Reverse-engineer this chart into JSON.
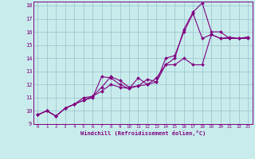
{
  "xlabel": "Windchill (Refroidissement éolien,°C)",
  "bg_color": "#c8ecec",
  "line_color": "#800080",
  "grid_color": "#a0c8d0",
  "axis_color": "#800080",
  "xlim": [
    -0.5,
    23.5
  ],
  "ylim": [
    9,
    18.3
  ],
  "xticks": [
    0,
    1,
    2,
    3,
    4,
    5,
    6,
    7,
    8,
    9,
    10,
    11,
    12,
    13,
    14,
    15,
    16,
    17,
    18,
    19,
    20,
    21,
    22,
    23
  ],
  "yticks": [
    9,
    10,
    11,
    12,
    13,
    14,
    15,
    16,
    17,
    18
  ],
  "series": [
    {
      "x": [
        0,
        1,
        2,
        3,
        4,
        5,
        6,
        7,
        8,
        9,
        10,
        11,
        12,
        13,
        14,
        15,
        16,
        17,
        18,
        19,
        20,
        21,
        22,
        23
      ],
      "y": [
        9.7,
        10.0,
        9.6,
        10.2,
        10.5,
        10.8,
        11.1,
        11.5,
        12.0,
        11.8,
        11.7,
        11.9,
        12.0,
        12.5,
        13.5,
        13.5,
        14.0,
        13.5,
        13.5,
        15.8,
        15.5,
        15.5,
        15.5,
        15.6
      ]
    },
    {
      "x": [
        0,
        1,
        2,
        3,
        4,
        5,
        6,
        7,
        8,
        9,
        10,
        11,
        12,
        13,
        14,
        15,
        16,
        17,
        18,
        19,
        20,
        21,
        22,
        23
      ],
      "y": [
        9.7,
        10.0,
        9.6,
        10.2,
        10.5,
        10.8,
        11.0,
        12.6,
        12.5,
        12.0,
        11.7,
        12.5,
        12.0,
        12.2,
        13.5,
        14.0,
        16.2,
        17.5,
        18.2,
        16.0,
        16.0,
        15.5,
        15.5,
        15.5
      ]
    },
    {
      "x": [
        0,
        1,
        2,
        3,
        4,
        5,
        6,
        7,
        8,
        9,
        10,
        11,
        12,
        13,
        14,
        15,
        16,
        17,
        18,
        19,
        20,
        21,
        22,
        23
      ],
      "y": [
        9.7,
        10.0,
        9.6,
        10.2,
        10.5,
        11.0,
        11.1,
        11.8,
        12.6,
        12.3,
        11.8,
        11.9,
        12.4,
        12.2,
        14.0,
        14.2,
        16.0,
        17.4,
        15.5,
        15.8,
        15.5,
        15.6,
        15.5,
        15.6
      ]
    }
  ]
}
